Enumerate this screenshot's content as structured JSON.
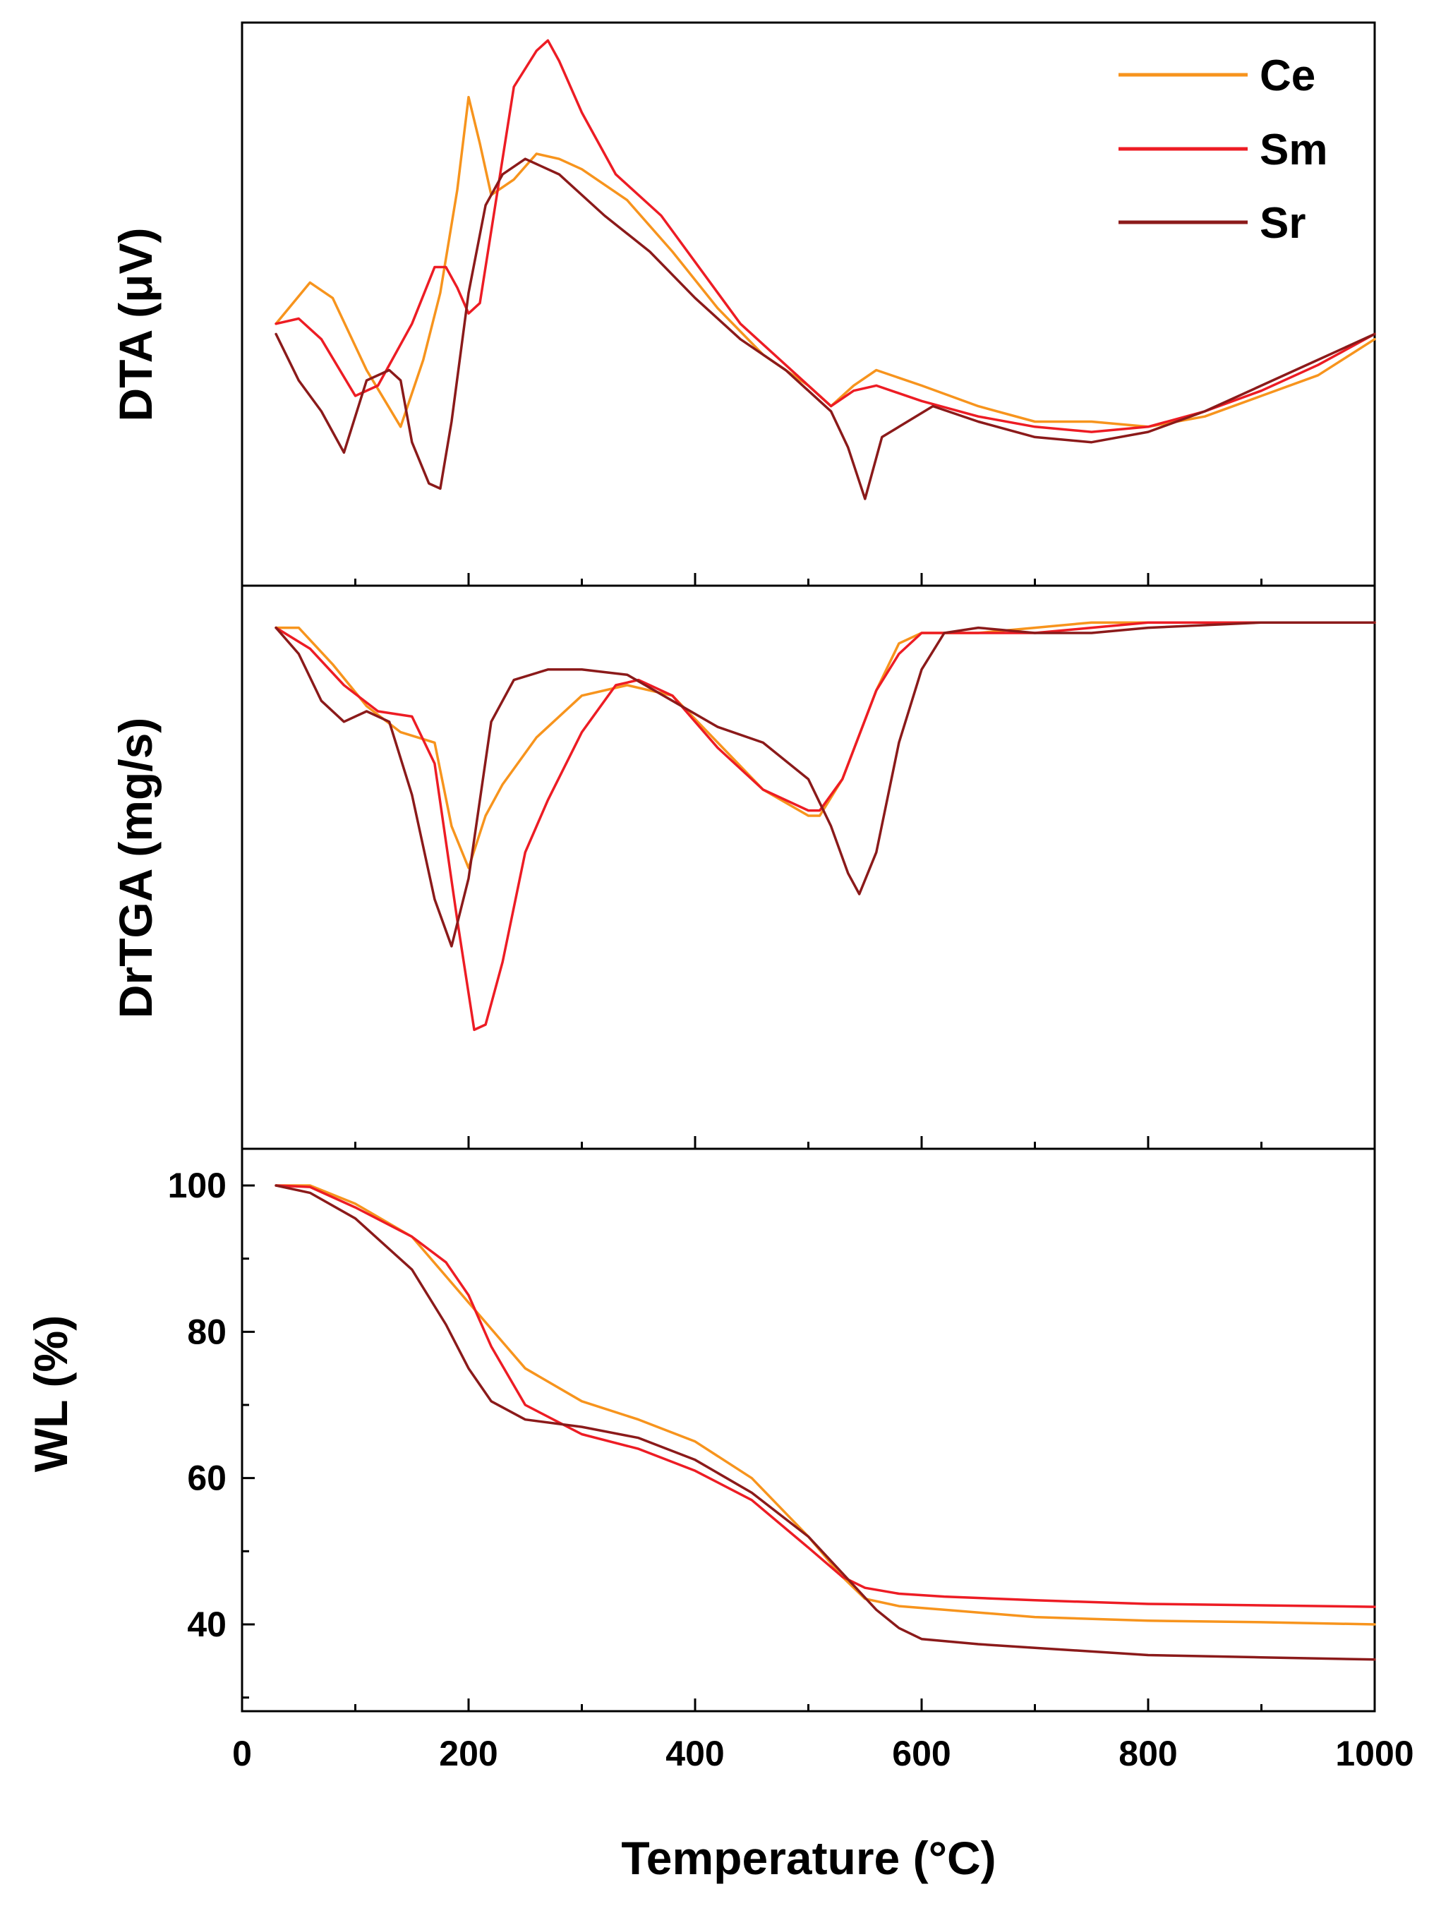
{
  "chart_data": {
    "type": "line",
    "layout": "three vertically stacked panels sharing one x axis",
    "xlabel": "Temperature (°C)",
    "xlim": [
      0,
      1000
    ],
    "xticks": [
      "0",
      "200",
      "400",
      "600",
      "800",
      "1000"
    ],
    "legend": {
      "placement": "top-right of top panel",
      "entries": [
        {
          "name": "Ce",
          "color": "#F7941D"
        },
        {
          "name": "Sm",
          "color": "#ED1C24"
        },
        {
          "name": "Sr",
          "color": "#8B1A1A"
        }
      ]
    },
    "panels": [
      {
        "id": "dta",
        "ylabel": "DTA (μV)",
        "ylim": [
          0,
          100
        ],
        "yticks": [],
        "units_note": "arbitrary units, no y tick labels",
        "series": [
          {
            "name": "Ce",
            "color": "#F7941D",
            "x": [
              30,
              60,
              80,
              110,
              140,
              160,
              175,
              190,
              200,
              210,
              220,
              240,
              260,
              280,
              300,
              340,
              380,
              420,
              460,
              500,
              520,
              540,
              560,
              600,
              650,
              700,
              750,
              800,
              850,
              900,
              950,
              1000
            ],
            "y": [
              44,
              52,
              49,
              35,
              24,
              37,
              50,
              70,
              88,
              79,
              69,
              72,
              77,
              76,
              74,
              68,
              58,
              47,
              38,
              32,
              28,
              32,
              35,
              32,
              28,
              25,
              25,
              24,
              26,
              30,
              34,
              41
            ]
          },
          {
            "name": "Sm",
            "color": "#ED1C24",
            "x": [
              30,
              50,
              70,
              100,
              120,
              150,
              170,
              180,
              190,
              200,
              210,
              220,
              240,
              260,
              270,
              280,
              300,
              330,
              370,
              400,
              440,
              480,
              500,
              520,
              540,
              560,
              600,
              650,
              700,
              750,
              800,
              850,
              900,
              950,
              1000
            ],
            "y": [
              44,
              45,
              41,
              30,
              32,
              44,
              55,
              55,
              51,
              46,
              48,
              62,
              90,
              97,
              99,
              95,
              85,
              73,
              65,
              56,
              44,
              36,
              32,
              28,
              31,
              32,
              29,
              26,
              24,
              23,
              24,
              27,
              31,
              36,
              42
            ]
          },
          {
            "name": "Sr",
            "color": "#8B1A1A",
            "x": [
              30,
              50,
              70,
              90,
              110,
              130,
              140,
              150,
              165,
              175,
              185,
              200,
              215,
              230,
              250,
              280,
              320,
              360,
              400,
              440,
              480,
              520,
              535,
              550,
              565,
              580,
              610,
              650,
              700,
              750,
              800,
              850,
              900,
              950,
              1000
            ],
            "y": [
              42,
              33,
              27,
              19,
              33,
              35,
              33,
              21,
              13,
              12,
              25,
              50,
              67,
              73,
              76,
              73,
              65,
              58,
              49,
              41,
              35,
              27,
              20,
              10,
              22,
              24,
              28,
              25,
              22,
              21,
              23,
              27,
              32,
              37,
              42
            ]
          }
        ]
      },
      {
        "id": "drtga",
        "ylabel": "DrTGA (mg/s)",
        "ylim": [
          0,
          100
        ],
        "yticks": [],
        "units_note": "arbitrary units, no y tick labels",
        "series": [
          {
            "name": "Ce",
            "color": "#F7941D",
            "x": [
              30,
              50,
              80,
              110,
              140,
              170,
              185,
              200,
              215,
              230,
              260,
              300,
              340,
              380,
              420,
              460,
              500,
              510,
              530,
              560,
              580,
              600,
              650,
              700,
              750,
              800,
              900,
              1000
            ],
            "y": [
              96,
              96,
              89,
              81,
              76,
              74,
              58,
              50,
              60,
              66,
              75,
              83,
              85,
              83,
              74,
              65,
              60,
              60,
              67,
              84,
              93,
              95,
              95,
              96,
              97,
              97,
              97,
              97
            ]
          },
          {
            "name": "Sm",
            "color": "#ED1C24",
            "x": [
              30,
              60,
              90,
              120,
              150,
              170,
              190,
              205,
              215,
              230,
              250,
              270,
              300,
              330,
              350,
              380,
              420,
              460,
              500,
              510,
              530,
              560,
              580,
              600,
              650,
              700,
              750,
              800,
              900,
              1000
            ],
            "y": [
              96,
              92,
              85,
              80,
              79,
              70,
              40,
              19,
              20,
              32,
              53,
              63,
              76,
              85,
              86,
              83,
              73,
              65,
              61,
              61,
              67,
              84,
              91,
              95,
              95,
              95,
              96,
              97,
              97,
              97
            ]
          },
          {
            "name": "Sr",
            "color": "#8B1A1A",
            "x": [
              30,
              50,
              70,
              90,
              110,
              130,
              150,
              170,
              185,
              200,
              220,
              240,
              270,
              300,
              340,
              380,
              420,
              460,
              500,
              520,
              535,
              545,
              560,
              580,
              600,
              620,
              650,
              700,
              750,
              800,
              900,
              1000
            ],
            "y": [
              96,
              91,
              82,
              78,
              80,
              78,
              64,
              44,
              35,
              48,
              78,
              86,
              88,
              88,
              87,
              82,
              77,
              74,
              67,
              58,
              49,
              45,
              53,
              74,
              88,
              95,
              96,
              95,
              95,
              96,
              97,
              97
            ]
          }
        ]
      },
      {
        "id": "wl",
        "ylabel": "WL (%)",
        "ylim": [
          29,
          105
        ],
        "yticks": [
          "40",
          "60",
          "80",
          "100"
        ],
        "series": [
          {
            "name": "Ce",
            "color": "#F7941D",
            "x": [
              30,
              60,
              100,
              150,
              200,
              250,
              300,
              350,
              400,
              450,
              500,
              530,
              550,
              580,
              620,
              700,
              800,
              900,
              1000
            ],
            "y": [
              100,
              100,
              97.5,
              93,
              84,
              75,
              70.5,
              68,
              65,
              60,
              52,
              46.5,
              43.5,
              42.5,
              42,
              41,
              40.5,
              40.3,
              40
            ]
          },
          {
            "name": "Sm",
            "color": "#ED1C24",
            "x": [
              30,
              60,
              100,
              150,
              180,
              200,
              220,
              250,
              300,
              350,
              400,
              450,
              500,
              530,
              550,
              580,
              620,
              700,
              800,
              900,
              1000
            ],
            "y": [
              100,
              99.8,
              97,
              93,
              89.5,
              85,
              78,
              70,
              66,
              64,
              61,
              57,
              50.5,
              46.5,
              45,
              44.2,
              43.8,
              43.3,
              42.8,
              42.6,
              42.4
            ]
          },
          {
            "name": "Sr",
            "color": "#8B1A1A",
            "x": [
              30,
              60,
              100,
              150,
              180,
              200,
              220,
              250,
              300,
              350,
              400,
              450,
              500,
              530,
              560,
              580,
              600,
              650,
              700,
              800,
              900,
              1000
            ],
            "y": [
              100,
              99,
              95.5,
              88.5,
              81,
              75,
              70.5,
              68,
              67,
              65.5,
              62.5,
              58,
              52,
              47,
              42,
              39.5,
              38,
              37.3,
              36.8,
              35.8,
              35.5,
              35.2
            ]
          }
        ]
      }
    ]
  }
}
